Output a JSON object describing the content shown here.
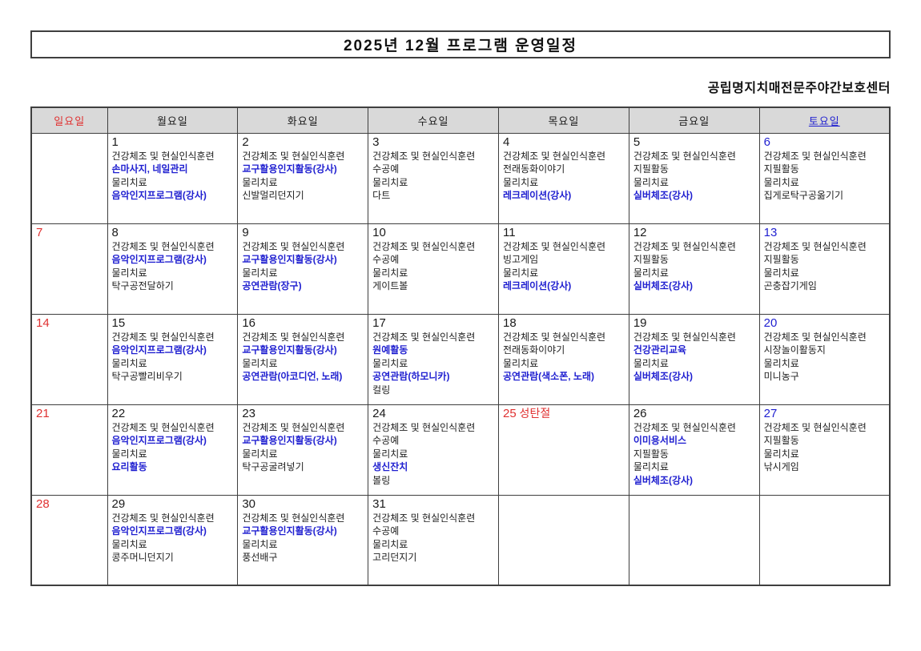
{
  "title": "2025년 12월 프로그램 운영일정",
  "organization": "공립명지치매전문주야간보호센터",
  "colors": {
    "red": "#e03131",
    "blue": "#1f1fd0",
    "text": "#1a1a1a",
    "header_bg": "#d9d9d9",
    "border": "#3f3f3f"
  },
  "weekday_headers": [
    {
      "label": "일요일",
      "style": "sun"
    },
    {
      "label": "월요일",
      "style": "normal"
    },
    {
      "label": "화요일",
      "style": "normal"
    },
    {
      "label": "수요일",
      "style": "normal"
    },
    {
      "label": "목요일",
      "style": "normal"
    },
    {
      "label": "금요일",
      "style": "normal"
    },
    {
      "label": "토요일",
      "style": "sat"
    }
  ],
  "weeks": [
    [
      {
        "day": "",
        "day_style": "sun",
        "lines": []
      },
      {
        "day": "1",
        "day_style": "normal",
        "lines": [
          {
            "text": "건강체조 및 현실인식훈련",
            "style": "plain"
          },
          {
            "text": "손마사지, 네일관리",
            "style": "blue"
          },
          {
            "text": "물리치료",
            "style": "plain"
          },
          {
            "text": "음악인지프로그램(강사)",
            "style": "blue"
          }
        ]
      },
      {
        "day": "2",
        "day_style": "normal",
        "lines": [
          {
            "text": "건강체조 및 현실인식훈련",
            "style": "plain"
          },
          {
            "text": "교구활용인지활동(강사)",
            "style": "blue"
          },
          {
            "text": "물리치료",
            "style": "plain"
          },
          {
            "text": "신발멀리던지기",
            "style": "plain"
          }
        ]
      },
      {
        "day": "3",
        "day_style": "normal",
        "lines": [
          {
            "text": "건강체조 및 현실인식훈련",
            "style": "plain"
          },
          {
            "text": "수공예",
            "style": "plain"
          },
          {
            "text": "물리치료",
            "style": "plain"
          },
          {
            "text": "다트",
            "style": "plain"
          }
        ]
      },
      {
        "day": "4",
        "day_style": "normal",
        "lines": [
          {
            "text": "건강체조 및 현실인식훈련",
            "style": "plain"
          },
          {
            "text": "전래동화이야기",
            "style": "plain"
          },
          {
            "text": "물리치료",
            "style": "plain"
          },
          {
            "text": "레크레이션(강사)",
            "style": "blue"
          }
        ]
      },
      {
        "day": "5",
        "day_style": "normal",
        "lines": [
          {
            "text": "건강체조 및 현실인식훈련",
            "style": "plain"
          },
          {
            "text": "지필활동",
            "style": "plain"
          },
          {
            "text": "물리치료",
            "style": "plain"
          },
          {
            "text": "실버체조(강사)",
            "style": "blue"
          }
        ]
      },
      {
        "day": "6",
        "day_style": "sat",
        "lines": [
          {
            "text": "건강체조 및 현실인식훈련",
            "style": "plain"
          },
          {
            "text": "지필활동",
            "style": "plain"
          },
          {
            "text": "물리치료",
            "style": "plain"
          },
          {
            "text": "집게로탁구공옮기기",
            "style": "plain"
          }
        ]
      }
    ],
    [
      {
        "day": "7",
        "day_style": "sun",
        "lines": []
      },
      {
        "day": "8",
        "day_style": "normal",
        "lines": [
          {
            "text": "건강체조 및 현실인식훈련",
            "style": "plain"
          },
          {
            "text": "음악인지프로그램(강사)",
            "style": "blue"
          },
          {
            "text": "물리치료",
            "style": "plain"
          },
          {
            "text": "탁구공전달하기",
            "style": "plain"
          }
        ]
      },
      {
        "day": "9",
        "day_style": "normal",
        "lines": [
          {
            "text": "건강체조 및 현실인식훈련",
            "style": "plain"
          },
          {
            "text": "교구활용인지활동(강사)",
            "style": "blue"
          },
          {
            "text": "물리치료",
            "style": "plain"
          },
          {
            "text": "공연관람(장구)",
            "style": "blue"
          }
        ]
      },
      {
        "day": "10",
        "day_style": "normal",
        "lines": [
          {
            "text": "건강체조 및 현실인식훈련",
            "style": "plain"
          },
          {
            "text": "수공예",
            "style": "plain"
          },
          {
            "text": "물리치료",
            "style": "plain"
          },
          {
            "text": "게이트볼",
            "style": "plain"
          }
        ]
      },
      {
        "day": "11",
        "day_style": "normal",
        "lines": [
          {
            "text": "건강체조 및 현실인식훈련",
            "style": "plain"
          },
          {
            "text": "빙고게임",
            "style": "plain"
          },
          {
            "text": "물리치료",
            "style": "plain"
          },
          {
            "text": "레크레이션(강사)",
            "style": "blue"
          }
        ]
      },
      {
        "day": "12",
        "day_style": "normal",
        "lines": [
          {
            "text": "건강체조 및 현실인식훈련",
            "style": "plain"
          },
          {
            "text": "지필활동",
            "style": "plain"
          },
          {
            "text": "물리치료",
            "style": "plain"
          },
          {
            "text": "실버체조(강사)",
            "style": "blue"
          }
        ]
      },
      {
        "day": "13",
        "day_style": "sat",
        "lines": [
          {
            "text": "건강체조 및 현실인식훈련",
            "style": "plain"
          },
          {
            "text": "지필활동",
            "style": "plain"
          },
          {
            "text": "물리치료",
            "style": "plain"
          },
          {
            "text": "곤충잡기게임",
            "style": "plain"
          }
        ]
      }
    ],
    [
      {
        "day": "14",
        "day_style": "sun",
        "lines": []
      },
      {
        "day": "15",
        "day_style": "normal",
        "lines": [
          {
            "text": "건강체조 및 현실인식훈련",
            "style": "plain"
          },
          {
            "text": "음악인지프로그램(강사)",
            "style": "blue"
          },
          {
            "text": "물리치료",
            "style": "plain"
          },
          {
            "text": "탁구공빨리비우기",
            "style": "plain"
          }
        ]
      },
      {
        "day": "16",
        "day_style": "normal",
        "lines": [
          {
            "text": "건강체조 및 현실인식훈련",
            "style": "plain"
          },
          {
            "text": "교구활용인지활동(강사)",
            "style": "blue"
          },
          {
            "text": "물리치료",
            "style": "plain"
          },
          {
            "text": "공연관람(아코디언, 노래)",
            "style": "blue"
          }
        ]
      },
      {
        "day": "17",
        "day_style": "normal",
        "lines": [
          {
            "text": "건강체조 및 현실인식훈련",
            "style": "plain"
          },
          {
            "text": "원예활동",
            "style": "blue"
          },
          {
            "text": "물리치료",
            "style": "plain"
          },
          {
            "text": "공연관람(하모니카)",
            "style": "blue"
          },
          {
            "text": "컬링",
            "style": "plain"
          }
        ]
      },
      {
        "day": "18",
        "day_style": "normal",
        "lines": [
          {
            "text": "건강체조 및 현실인식훈련",
            "style": "plain"
          },
          {
            "text": "전래동화이야기",
            "style": "plain"
          },
          {
            "text": "물리치료",
            "style": "plain"
          },
          {
            "text": "공연관람(색소폰, 노래)",
            "style": "blue"
          }
        ]
      },
      {
        "day": "19",
        "day_style": "normal",
        "lines": [
          {
            "text": "건강체조 및 현실인식훈련",
            "style": "plain"
          },
          {
            "text": "건강관리교육",
            "style": "blue"
          },
          {
            "text": "물리치료",
            "style": "plain"
          },
          {
            "text": "실버체조(강사)",
            "style": "blue"
          }
        ]
      },
      {
        "day": "20",
        "day_style": "sat",
        "lines": [
          {
            "text": "건강체조 및 현실인식훈련",
            "style": "plain"
          },
          {
            "text": "시장놀이활동지",
            "style": "plain"
          },
          {
            "text": "물리치료",
            "style": "plain"
          },
          {
            "text": "미니농구",
            "style": "plain"
          }
        ]
      }
    ],
    [
      {
        "day": "21",
        "day_style": "sun",
        "lines": []
      },
      {
        "day": "22",
        "day_style": "normal",
        "lines": [
          {
            "text": "건강체조 및 현실인식훈련",
            "style": "plain"
          },
          {
            "text": "음악인지프로그램(강사)",
            "style": "blue"
          },
          {
            "text": "물리치료",
            "style": "plain"
          },
          {
            "text": "요리활동",
            "style": "blue"
          }
        ]
      },
      {
        "day": "23",
        "day_style": "normal",
        "lines": [
          {
            "text": "건강체조 및 현실인식훈련",
            "style": "plain"
          },
          {
            "text": "교구활용인지활동(강사)",
            "style": "blue"
          },
          {
            "text": "물리치료",
            "style": "plain"
          },
          {
            "text": "탁구공굴려넣기",
            "style": "plain"
          }
        ]
      },
      {
        "day": "24",
        "day_style": "normal",
        "lines": [
          {
            "text": "건강체조 및 현실인식훈련",
            "style": "plain"
          },
          {
            "text": "수공예",
            "style": "plain"
          },
          {
            "text": "물리치료",
            "style": "plain"
          },
          {
            "text": "생신잔치",
            "style": "blue"
          },
          {
            "text": "볼링",
            "style": "plain"
          }
        ]
      },
      {
        "day": "25",
        "day_style": "holiday",
        "holiday": "성탄절",
        "lines": []
      },
      {
        "day": "26",
        "day_style": "normal",
        "lines": [
          {
            "text": "건강체조 및 현실인식훈련",
            "style": "plain"
          },
          {
            "text": "이미용서비스",
            "style": "blue"
          },
          {
            "text": "지필활동",
            "style": "plain"
          },
          {
            "text": "물리치료",
            "style": "plain"
          },
          {
            "text": "실버체조(강사)",
            "style": "blue"
          }
        ]
      },
      {
        "day": "27",
        "day_style": "sat",
        "lines": [
          {
            "text": "건강체조 및 현실인식훈련",
            "style": "plain"
          },
          {
            "text": "지필활동",
            "style": "plain"
          },
          {
            "text": "물리치료",
            "style": "plain"
          },
          {
            "text": "낚시게임",
            "style": "plain"
          }
        ]
      }
    ],
    [
      {
        "day": "28",
        "day_style": "sun",
        "lines": []
      },
      {
        "day": "29",
        "day_style": "normal",
        "lines": [
          {
            "text": "건강체조 및 현실인식훈련",
            "style": "plain"
          },
          {
            "text": "음악인지프로그램(강사)",
            "style": "blue"
          },
          {
            "text": "물리치료",
            "style": "plain"
          },
          {
            "text": "콩주머니던지기",
            "style": "plain"
          }
        ]
      },
      {
        "day": "30",
        "day_style": "normal",
        "lines": [
          {
            "text": "건강체조 및 현실인식훈련",
            "style": "plain"
          },
          {
            "text": "교구활용인지활동(강사)",
            "style": "blue"
          },
          {
            "text": "물리치료",
            "style": "plain"
          },
          {
            "text": "풍선배구",
            "style": "plain"
          }
        ]
      },
      {
        "day": "31",
        "day_style": "normal",
        "lines": [
          {
            "text": "건강체조 및 현실인식훈련",
            "style": "plain"
          },
          {
            "text": "수공예",
            "style": "plain"
          },
          {
            "text": "물리치료",
            "style": "plain"
          },
          {
            "text": "고리던지기",
            "style": "plain"
          }
        ]
      },
      {
        "day": "",
        "day_style": "normal",
        "lines": []
      },
      {
        "day": "",
        "day_style": "normal",
        "lines": []
      },
      {
        "day": "",
        "day_style": "normal",
        "lines": []
      }
    ]
  ]
}
